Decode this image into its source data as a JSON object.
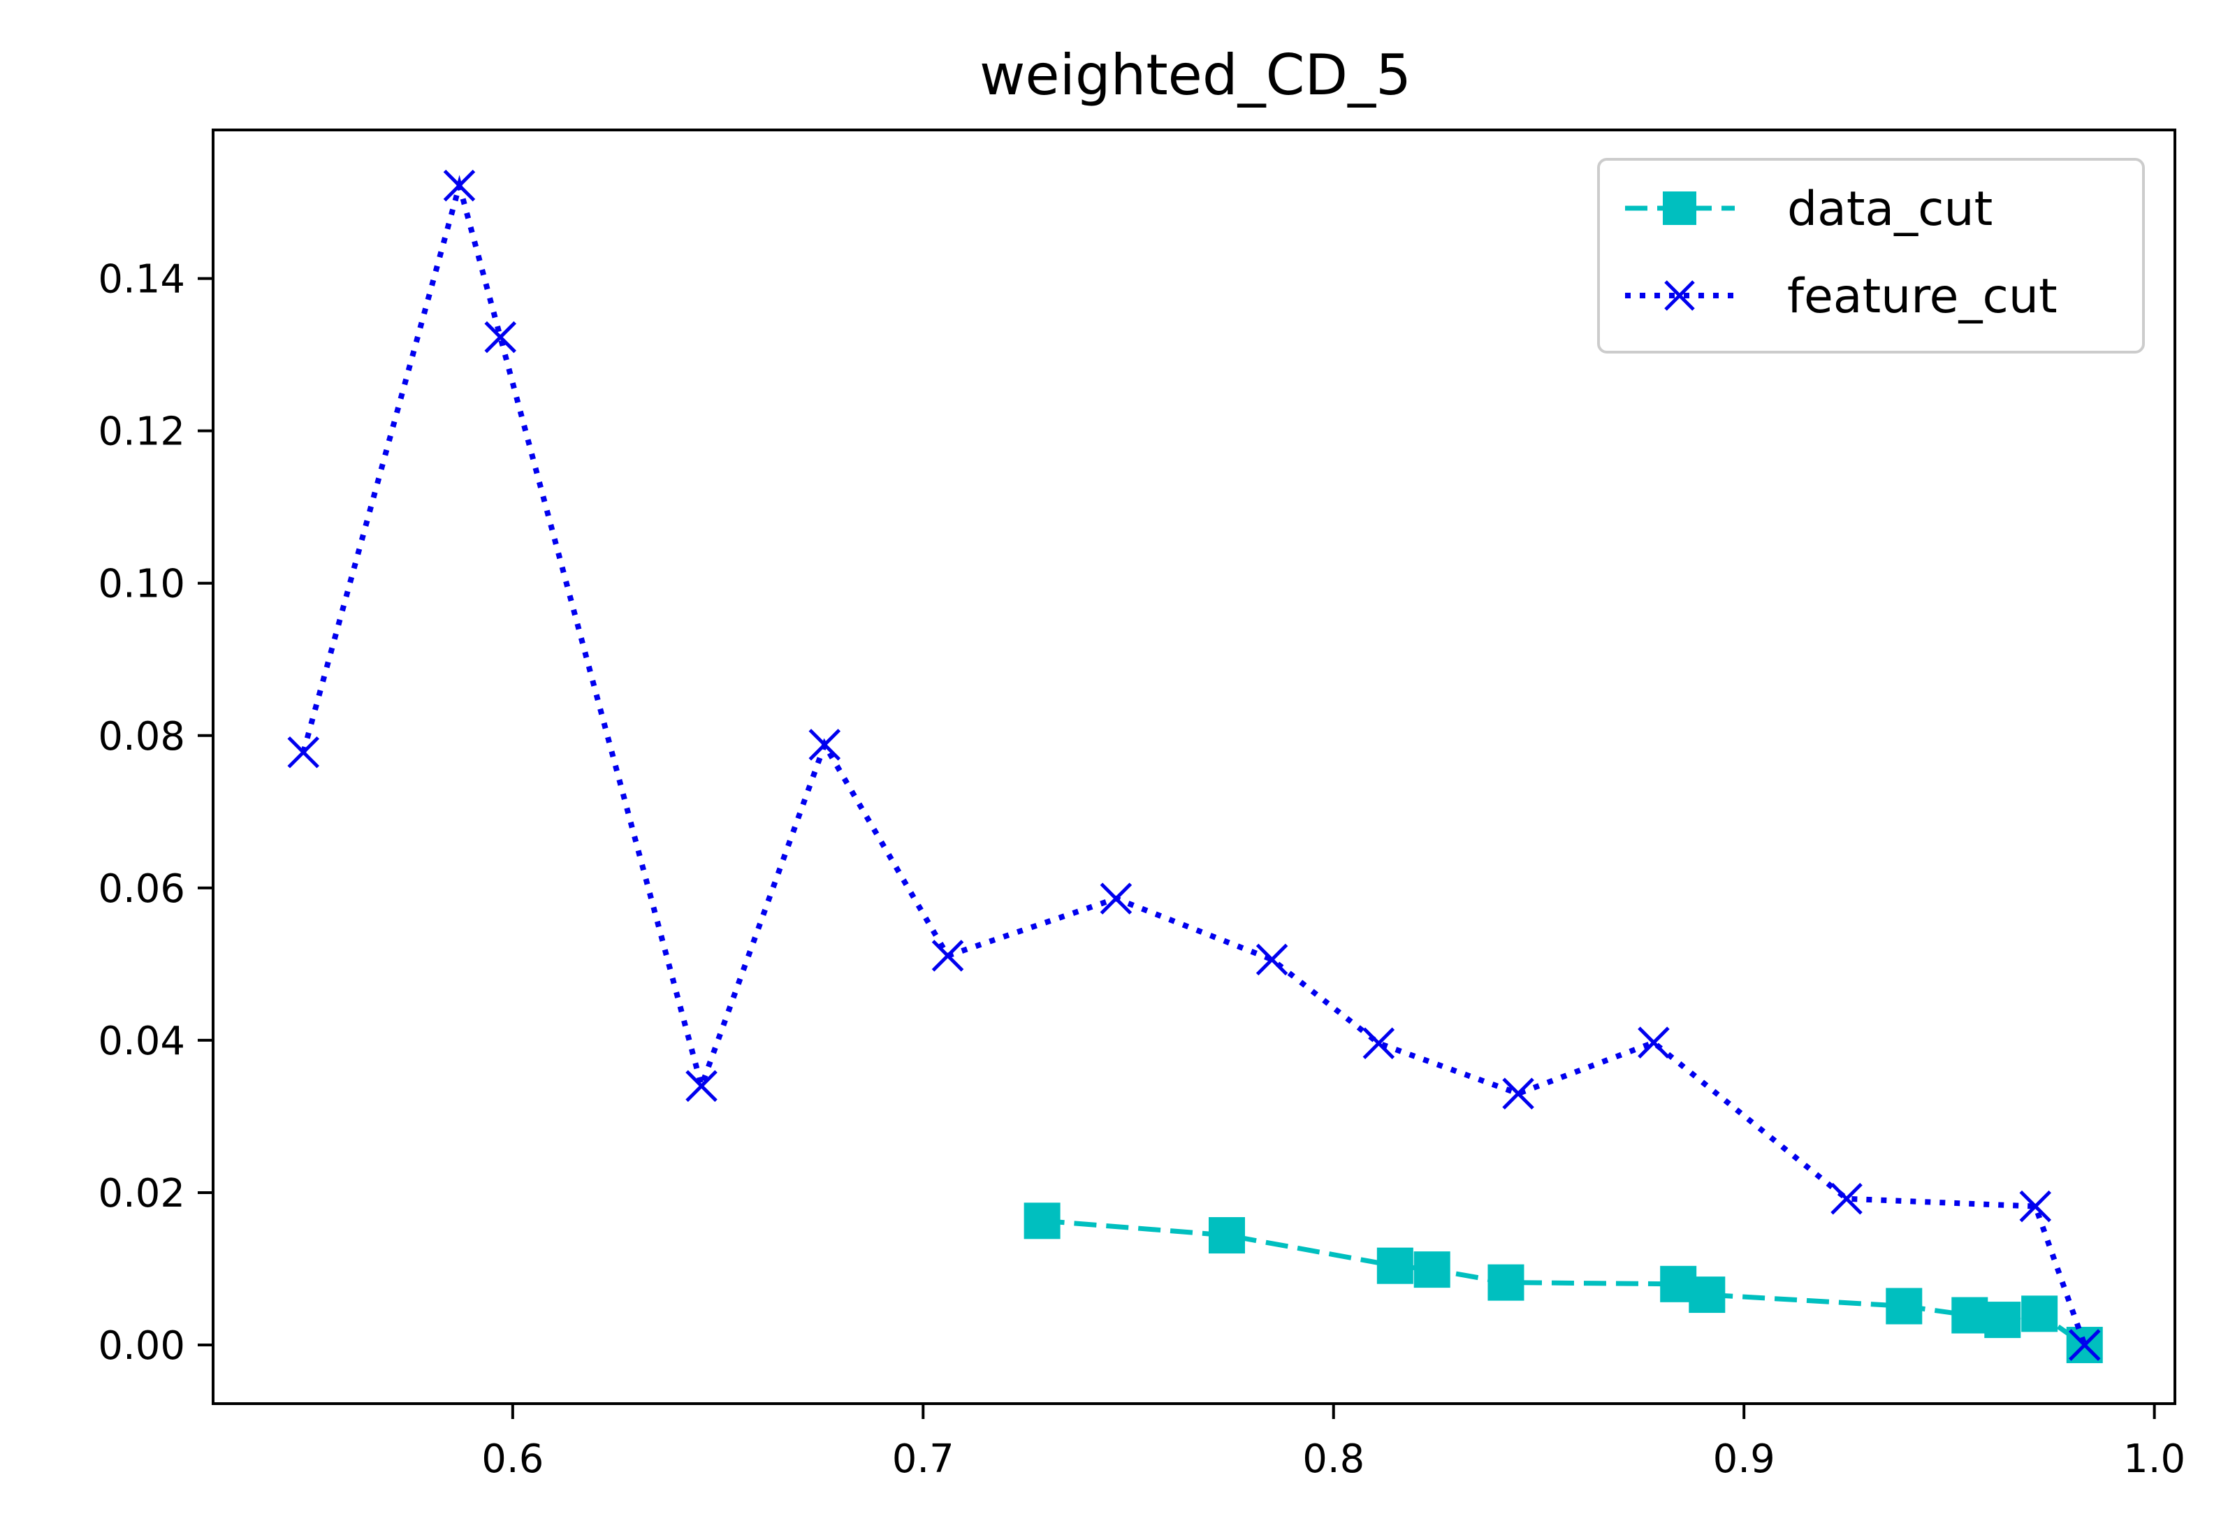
{
  "chart_data": {
    "type": "line",
    "title": "weighted_CD_5",
    "xlabel": "",
    "ylabel": "",
    "xlim": [
      0.527,
      1.005
    ],
    "ylim": [
      -0.0077,
      0.1595
    ],
    "xticks": [
      0.6,
      0.7,
      0.8,
      0.9,
      1.0
    ],
    "xtick_labels": [
      "0.6",
      "0.7",
      "0.8",
      "0.9",
      "1.0"
    ],
    "yticks": [
      0.0,
      0.02,
      0.04,
      0.06,
      0.08,
      0.1,
      0.12,
      0.14
    ],
    "ytick_labels": [
      "0.00",
      "0.02",
      "0.04",
      "0.06",
      "0.08",
      "0.10",
      "0.12",
      "0.14"
    ],
    "grid": false,
    "legend_position": "top-right",
    "series": [
      {
        "name": "data_cut",
        "color": "#00bfbf",
        "line_style": "dashed",
        "marker": "square",
        "x": [
          0.729,
          0.774,
          0.815,
          0.824,
          0.842,
          0.884,
          0.891,
          0.939,
          0.955,
          0.963,
          0.972,
          0.983
        ],
        "y": [
          0.0163,
          0.0144,
          0.0104,
          0.0099,
          0.0082,
          0.008,
          0.0066,
          0.0051,
          0.0039,
          0.0033,
          0.0041,
          0.0
        ]
      },
      {
        "name": "feature_cut",
        "color": "#0000ee",
        "line_style": "dotted",
        "marker": "x",
        "x": [
          0.549,
          0.587,
          0.597,
          0.646,
          0.676,
          0.706,
          0.747,
          0.785,
          0.811,
          0.845,
          0.878,
          0.925,
          0.971,
          0.983
        ],
        "y": [
          0.0778,
          0.1522,
          0.1323,
          0.034,
          0.0788,
          0.0511,
          0.0586,
          0.0506,
          0.0396,
          0.033,
          0.0397,
          0.0192,
          0.0182,
          0.0
        ]
      }
    ]
  }
}
